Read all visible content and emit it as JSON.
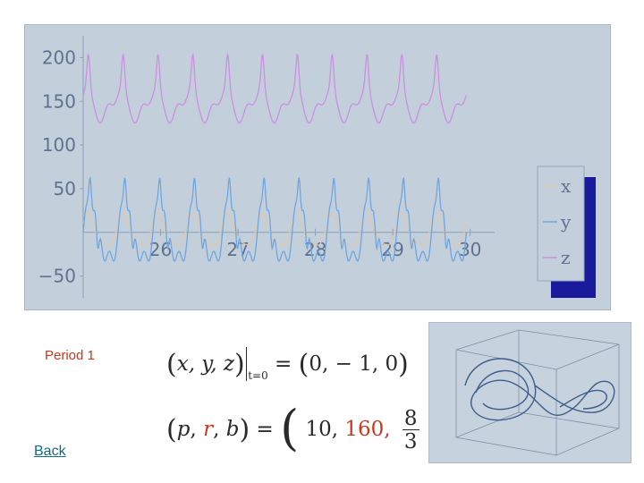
{
  "chart_data": {
    "type": "line",
    "x_ticks": [
      26,
      27,
      28,
      29,
      30
    ],
    "y_ticks": [
      200,
      150,
      100,
      50,
      -50
    ],
    "xlim": [
      25.0,
      30.2
    ],
    "ylim": [
      -75,
      225
    ],
    "legend": {
      "placement": "right",
      "entries": [
        "x",
        "y",
        "z"
      ]
    },
    "grid": false,
    "series": [
      {
        "name": "x",
        "color": "#e2c8a8",
        "base": 0,
        "amp": 22
      },
      {
        "name": "y",
        "color": "#6fa6e0",
        "base": 0,
        "amp": 62
      },
      {
        "name": "z",
        "color": "#cc8fe2",
        "base": 157,
        "amp": 38
      }
    ],
    "period": 0.45
  },
  "labels": {
    "period": "Period 1",
    "back": "Back"
  },
  "equations": {
    "initial": {
      "vars": "x, y, z",
      "subscript": "t=0",
      "values": "0,  − 1,  0"
    },
    "params": {
      "vars_p": "p",
      "vars_r": "r",
      "vars_b": "b",
      "v1": "10,",
      "v2": "160,",
      "frac_num": "8",
      "frac_den": "3"
    }
  },
  "attractor_panel": {
    "description_visible": false
  }
}
